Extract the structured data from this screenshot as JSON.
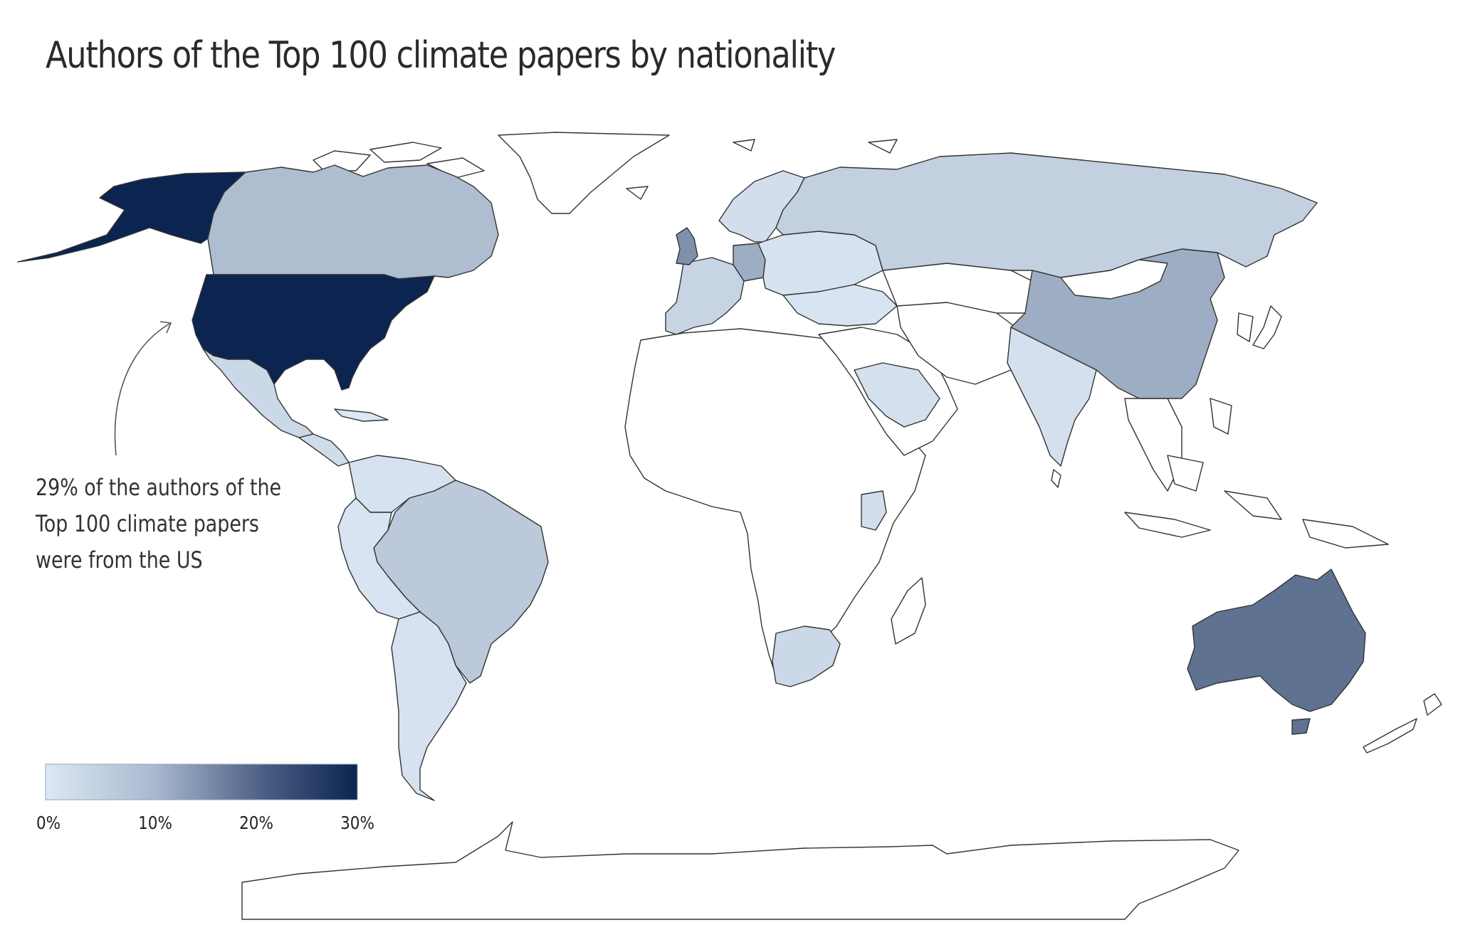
{
  "title": "Authors of the Top 100 climate papers by nationality",
  "annotation": {
    "lines": [
      "29% of the authors of the",
      "Top 100 climate papers",
      "were from the US"
    ]
  },
  "legend": {
    "min_color": "#dce8f4",
    "max_color": "#0b2450",
    "ticks": [
      "0%",
      "10%",
      "20%",
      "30%"
    ],
    "range": [
      0,
      30
    ]
  },
  "colors": {
    "no_data": "#ffffff",
    "border": "#333333"
  },
  "chart_data": {
    "type": "choropleth",
    "value_unit": "%",
    "range": [
      0,
      30
    ],
    "highlight": {
      "country": "United States",
      "value": 29
    },
    "regions": [
      {
        "name": "United States",
        "value": 29,
        "level": 1.0
      },
      {
        "name": "Australia",
        "value": 17,
        "level": 0.6
      },
      {
        "name": "United Kingdom",
        "value": 12,
        "level": 0.45
      },
      {
        "name": "China",
        "value": 8,
        "level": 0.3
      },
      {
        "name": "Germany",
        "value": 8,
        "level": 0.3
      },
      {
        "name": "Canada",
        "value": 6,
        "level": 0.22
      },
      {
        "name": "Brazil",
        "value": 4,
        "level": 0.16
      },
      {
        "name": "Russia",
        "value": 3,
        "level": 0.12
      },
      {
        "name": "France",
        "value": 3,
        "level": 0.12
      },
      {
        "name": "Mexico",
        "value": 2,
        "level": 0.08
      },
      {
        "name": "South Africa",
        "value": 2,
        "level": 0.08
      },
      {
        "name": "India",
        "value": 1,
        "level": 0.04
      }
    ]
  }
}
